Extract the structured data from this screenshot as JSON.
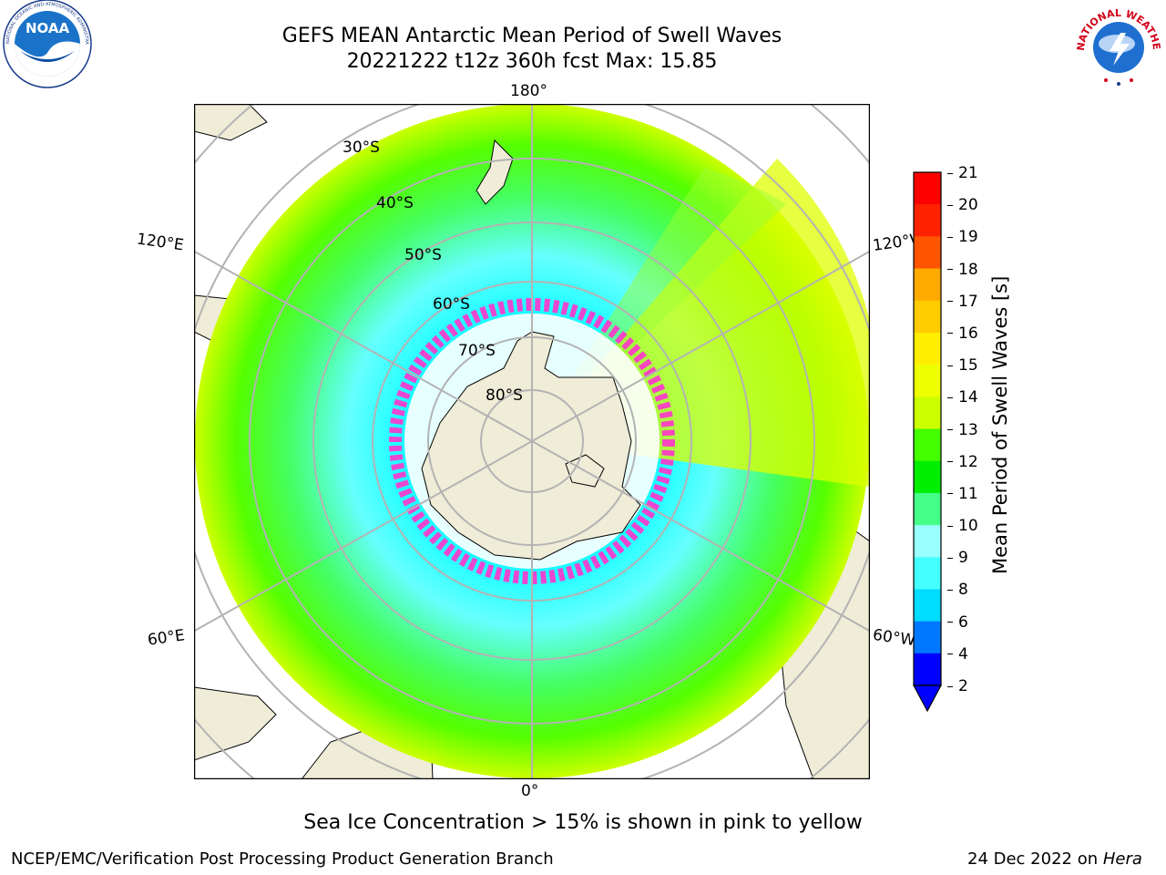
{
  "header": {
    "title_line1": "GEFS MEAN Antarctic Mean Period of Swell Waves",
    "title_line2": "20221222 t12z 360h fcst   Max: 15.85"
  },
  "logos": {
    "noaa": {
      "text": "NOAA",
      "ring_text": "NATIONAL OCEANIC AND ATMOSPHERIC ADMINISTRATION · U.S. DEPARTMENT OF COMMERCE",
      "icon": "noaa-logo"
    },
    "nws": {
      "ring_text": "NATIONAL WEATHER SERVICE",
      "icon": "nws-logo"
    }
  },
  "map": {
    "longitude_labels": {
      "top": "180°",
      "bottom": "0°",
      "left_upper": "120°E",
      "left_lower": "60°E",
      "right_upper": "120°W",
      "right_lower": "60°W"
    },
    "latitude_labels": [
      "30°S",
      "40°S",
      "50°S",
      "60°S",
      "70°S",
      "80°S"
    ],
    "colors": {
      "land": "#efecd8",
      "ocean_low": "#00ffff",
      "ocean_mid": "#44ff66",
      "ocean_high": "#ffff00",
      "grid": "#b3b3b3",
      "ice": "#ff33cc"
    }
  },
  "colorbar": {
    "label": "Mean Period of Swell Waves [s]",
    "ticks": [
      "21",
      "20",
      "19",
      "18",
      "17",
      "16",
      "15",
      "14",
      "13",
      "12",
      "11",
      "10",
      "9",
      "8",
      "6",
      "4",
      "2"
    ],
    "colors": [
      "#ff0000",
      "#ff2200",
      "#ff5500",
      "#ff8800",
      "#ffaa00",
      "#ffcc00",
      "#ffee00",
      "#eeff00",
      "#ccff00",
      "#99ff00",
      "#44ff00",
      "#00ee00",
      "#44ff88",
      "#99ffff",
      "#44ffff",
      "#00ffff",
      "#00ddff",
      "#0077ff",
      "#0000ff"
    ]
  },
  "notes": {
    "sea_ice": "Sea Ice Concentration > 15% is shown in pink to yellow"
  },
  "footer": {
    "left": "NCEP/EMC/Verification Post Processing Product Generation Branch",
    "right_prefix": "24 Dec 2022 on ",
    "right_machine": "Hera"
  }
}
